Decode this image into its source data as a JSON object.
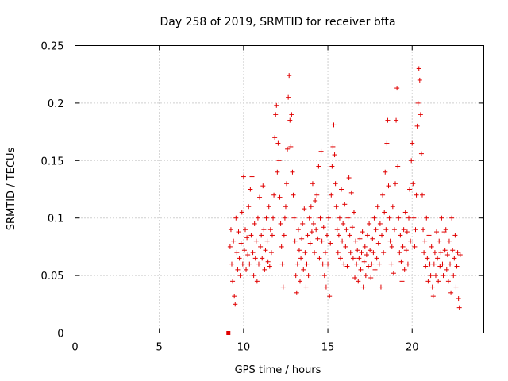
{
  "chart_data": {
    "type": "scatter",
    "title": "Day 258 of 2019, SRMTID for receiver bfta",
    "xlabel": "GPS time / hours",
    "ylabel": "SRMTID / TECUs",
    "xlim": [
      0,
      24.25
    ],
    "ylim": [
      0,
      0.25
    ],
    "xticks": [
      0,
      5,
      10,
      15,
      20
    ],
    "yticks": [
      0,
      0.05,
      0.1,
      0.15,
      0.2,
      0.25
    ],
    "xtick_labels": [
      "0",
      "5",
      "10",
      "15",
      "20"
    ],
    "ytick_labels": [
      "0",
      "0.05",
      "0.1",
      "0.15",
      "0.2",
      "0.25"
    ],
    "grid": true,
    "legend": "none",
    "marker": "+",
    "color": "#e00000",
    "series": [
      {
        "outlier": {
          "x": 9.1,
          "y": 0.0
        },
        "points": [
          [
            9.2,
            0.075
          ],
          [
            9.25,
            0.09
          ],
          [
            9.3,
            0.06
          ],
          [
            9.35,
            0.045
          ],
          [
            9.4,
            0.08
          ],
          [
            9.45,
            0.032
          ],
          [
            9.5,
            0.025
          ],
          [
            9.55,
            0.1
          ],
          [
            9.6,
            0.07
          ],
          [
            9.65,
            0.055
          ],
          [
            9.7,
            0.088
          ],
          [
            9.75,
            0.065
          ],
          [
            9.8,
            0.05
          ],
          [
            9.85,
            0.078
          ],
          [
            9.9,
            0.105
          ],
          [
            9.95,
            0.06
          ],
          [
            10.0,
            0.136
          ],
          [
            10.05,
            0.072
          ],
          [
            10.1,
            0.09
          ],
          [
            10.15,
            0.055
          ],
          [
            10.2,
            0.083
          ],
          [
            10.25,
            0.068
          ],
          [
            10.3,
            0.11
          ],
          [
            10.35,
            0.06
          ],
          [
            10.4,
            0.125
          ],
          [
            10.45,
            0.085
          ],
          [
            10.5,
            0.136
          ],
          [
            10.55,
            0.07
          ],
          [
            10.6,
            0.05
          ],
          [
            10.65,
            0.095
          ],
          [
            10.7,
            0.065
          ],
          [
            10.75,
            0.08
          ],
          [
            10.8,
            0.045
          ],
          [
            10.85,
            0.1
          ],
          [
            10.9,
            0.06
          ],
          [
            10.95,
            0.118
          ],
          [
            11.0,
            0.075
          ],
          [
            11.05,
            0.085
          ],
          [
            11.1,
            0.065
          ],
          [
            11.15,
            0.128
          ],
          [
            11.2,
            0.09
          ],
          [
            11.25,
            0.055
          ],
          [
            11.3,
            0.072
          ],
          [
            11.35,
            0.1
          ],
          [
            11.4,
            0.08
          ],
          [
            11.45,
            0.062
          ],
          [
            11.5,
            0.11
          ],
          [
            11.55,
            0.058
          ],
          [
            11.6,
            0.09
          ],
          [
            11.65,
            0.07
          ],
          [
            11.7,
            0.085
          ],
          [
            11.75,
            0.1
          ],
          [
            11.8,
            0.12
          ],
          [
            11.85,
            0.17
          ],
          [
            11.9,
            0.19
          ],
          [
            11.95,
            0.198
          ],
          [
            12.0,
            0.14
          ],
          [
            12.05,
            0.165
          ],
          [
            12.1,
            0.15
          ],
          [
            12.15,
            0.118
          ],
          [
            12.2,
            0.095
          ],
          [
            12.25,
            0.075
          ],
          [
            12.3,
            0.06
          ],
          [
            12.35,
            0.04
          ],
          [
            12.4,
            0.085
          ],
          [
            12.45,
            0.1
          ],
          [
            12.5,
            0.11
          ],
          [
            12.55,
            0.13
          ],
          [
            12.6,
            0.16
          ],
          [
            12.65,
            0.205
          ],
          [
            12.7,
            0.224
          ],
          [
            12.75,
            0.185
          ],
          [
            12.8,
            0.162
          ],
          [
            12.85,
            0.19
          ],
          [
            12.9,
            0.14
          ],
          [
            12.95,
            0.12
          ],
          [
            13.0,
            0.1
          ],
          [
            13.05,
            0.08
          ],
          [
            13.1,
            0.05
          ],
          [
            13.15,
            0.035
          ],
          [
            13.2,
            0.06
          ],
          [
            13.25,
            0.09
          ],
          [
            13.3,
            0.072
          ],
          [
            13.35,
            0.045
          ],
          [
            13.4,
            0.065
          ],
          [
            13.45,
            0.082
          ],
          [
            13.5,
            0.095
          ],
          [
            13.55,
            0.055
          ],
          [
            13.6,
            0.108
          ],
          [
            13.65,
            0.07
          ],
          [
            13.7,
            0.04
          ],
          [
            13.75,
            0.06
          ],
          [
            13.8,
            0.085
          ],
          [
            13.85,
            0.05
          ],
          [
            13.9,
            0.1
          ],
          [
            13.95,
            0.078
          ],
          [
            14.0,
            0.11
          ],
          [
            14.05,
            0.088
          ],
          [
            14.1,
            0.13
          ],
          [
            14.15,
            0.095
          ],
          [
            14.2,
            0.07
          ],
          [
            14.25,
            0.115
          ],
          [
            14.3,
            0.09
          ],
          [
            14.35,
            0.12
          ],
          [
            14.4,
            0.082
          ],
          [
            14.45,
            0.145
          ],
          [
            14.5,
            0.065
          ],
          [
            14.55,
            0.1
          ],
          [
            14.6,
            0.158
          ],
          [
            14.65,
            0.08
          ],
          [
            14.7,
            0.06
          ],
          [
            14.75,
            0.092
          ],
          [
            14.8,
            0.05
          ],
          [
            14.85,
            0.07
          ],
          [
            14.9,
            0.04
          ],
          [
            14.95,
            0.085
          ],
          [
            15.0,
            0.06
          ],
          [
            15.05,
            0.1
          ],
          [
            15.1,
            0.032
          ],
          [
            15.15,
            0.078
          ],
          [
            15.2,
            0.12
          ],
          [
            15.25,
            0.145
          ],
          [
            15.3,
            0.162
          ],
          [
            15.35,
            0.181
          ],
          [
            15.4,
            0.155
          ],
          [
            15.45,
            0.13
          ],
          [
            15.5,
            0.11
          ],
          [
            15.55,
            0.09
          ],
          [
            15.6,
            0.07
          ],
          [
            15.65,
            0.085
          ],
          [
            15.7,
            0.1
          ],
          [
            15.75,
            0.065
          ],
          [
            15.8,
            0.125
          ],
          [
            15.85,
            0.08
          ],
          [
            15.9,
            0.095
          ],
          [
            15.95,
            0.06
          ],
          [
            16.0,
            0.112
          ],
          [
            16.05,
            0.075
          ],
          [
            16.1,
            0.09
          ],
          [
            16.15,
            0.058
          ],
          [
            16.2,
            0.1
          ],
          [
            16.25,
            0.135
          ],
          [
            16.3,
            0.085
          ],
          [
            16.35,
            0.07
          ],
          [
            16.4,
            0.122
          ],
          [
            16.45,
            0.092
          ],
          [
            16.5,
            0.065
          ],
          [
            16.55,
            0.105
          ],
          [
            16.6,
            0.048
          ],
          [
            16.65,
            0.08
          ],
          [
            16.7,
            0.06
          ],
          [
            16.75,
            0.072
          ],
          [
            16.8,
            0.045
          ],
          [
            16.85,
            0.065
          ],
          [
            16.9,
            0.082
          ],
          [
            16.95,
            0.055
          ],
          [
            17.0,
            0.07
          ],
          [
            17.05,
            0.088
          ],
          [
            17.1,
            0.04
          ],
          [
            17.15,
            0.062
          ],
          [
            17.2,
            0.075
          ],
          [
            17.25,
            0.05
          ],
          [
            17.3,
            0.068
          ],
          [
            17.35,
            0.085
          ],
          [
            17.4,
            0.058
          ],
          [
            17.45,
            0.095
          ],
          [
            17.5,
            0.072
          ],
          [
            17.55,
            0.048
          ],
          [
            17.6,
            0.06
          ],
          [
            17.65,
            0.082
          ],
          [
            17.7,
            0.07
          ],
          [
            17.75,
            0.1
          ],
          [
            17.8,
            0.055
          ],
          [
            17.85,
            0.09
          ],
          [
            17.9,
            0.065
          ],
          [
            17.95,
            0.11
          ],
          [
            18.0,
            0.078
          ],
          [
            18.05,
            0.06
          ],
          [
            18.1,
            0.095
          ],
          [
            18.15,
            0.04
          ],
          [
            18.2,
            0.085
          ],
          [
            18.25,
            0.12
          ],
          [
            18.3,
            0.07
          ],
          [
            18.35,
            0.105
          ],
          [
            18.4,
            0.14
          ],
          [
            18.45,
            0.09
          ],
          [
            18.5,
            0.165
          ],
          [
            18.55,
            0.185
          ],
          [
            18.6,
            0.128
          ],
          [
            18.65,
            0.1
          ],
          [
            18.7,
            0.08
          ],
          [
            18.75,
            0.06
          ],
          [
            18.8,
            0.075
          ],
          [
            18.85,
            0.11
          ],
          [
            18.9,
            0.052
          ],
          [
            18.95,
            0.09
          ],
          [
            19.0,
            0.13
          ],
          [
            19.05,
            0.185
          ],
          [
            19.1,
            0.213
          ],
          [
            19.15,
            0.145
          ],
          [
            19.2,
            0.1
          ],
          [
            19.25,
            0.07
          ],
          [
            19.3,
            0.085
          ],
          [
            19.35,
            0.062
          ],
          [
            19.4,
            0.045
          ],
          [
            19.45,
            0.075
          ],
          [
            19.5,
            0.09
          ],
          [
            19.55,
            0.055
          ],
          [
            19.6,
            0.105
          ],
          [
            19.65,
            0.072
          ],
          [
            19.7,
            0.088
          ],
          [
            19.75,
            0.06
          ],
          [
            19.8,
            0.1
          ],
          [
            19.85,
            0.125
          ],
          [
            19.9,
            0.08
          ],
          [
            19.95,
            0.15
          ],
          [
            20.0,
            0.165
          ],
          [
            20.05,
            0.13
          ],
          [
            20.1,
            0.1
          ],
          [
            20.15,
            0.075
          ],
          [
            20.2,
            0.09
          ],
          [
            20.25,
            0.12
          ],
          [
            20.3,
            0.18
          ],
          [
            20.35,
            0.2
          ],
          [
            20.4,
            0.23
          ],
          [
            20.45,
            0.22
          ],
          [
            20.5,
            0.19
          ],
          [
            20.55,
            0.156
          ],
          [
            20.6,
            0.12
          ],
          [
            20.65,
            0.09
          ],
          [
            20.7,
            0.07
          ],
          [
            20.75,
            0.08
          ],
          [
            20.8,
            0.058
          ],
          [
            20.85,
            0.1
          ],
          [
            20.9,
            0.065
          ],
          [
            20.95,
            0.045
          ],
          [
            21.0,
            0.085
          ],
          [
            21.05,
            0.06
          ],
          [
            21.1,
            0.05
          ],
          [
            21.15,
            0.075
          ],
          [
            21.2,
            0.04
          ],
          [
            21.25,
            0.032
          ],
          [
            21.3,
            0.06
          ],
          [
            21.35,
            0.07
          ],
          [
            21.4,
            0.05
          ],
          [
            21.45,
            0.088
          ],
          [
            21.5,
            0.065
          ],
          [
            21.55,
            0.045
          ],
          [
            21.6,
            0.08
          ],
          [
            21.65,
            0.058
          ],
          [
            21.7,
            0.07
          ],
          [
            21.75,
            0.1
          ],
          [
            21.8,
            0.06
          ],
          [
            21.85,
            0.05
          ],
          [
            21.9,
            0.088
          ],
          [
            21.95,
            0.072
          ],
          [
            22.0,
            0.09
          ],
          [
            22.05,
            0.055
          ],
          [
            22.1,
            0.068
          ],
          [
            22.15,
            0.045
          ],
          [
            22.2,
            0.08
          ],
          [
            22.25,
            0.06
          ],
          [
            22.3,
            0.035
          ],
          [
            22.35,
            0.1
          ],
          [
            22.4,
            0.072
          ],
          [
            22.45,
            0.05
          ],
          [
            22.5,
            0.065
          ],
          [
            22.55,
            0.085
          ],
          [
            22.6,
            0.04
          ],
          [
            22.65,
            0.058
          ],
          [
            22.7,
            0.07
          ],
          [
            22.75,
            0.03
          ],
          [
            22.8,
            0.022
          ],
          [
            22.85,
            0.068
          ]
        ]
      }
    ]
  }
}
